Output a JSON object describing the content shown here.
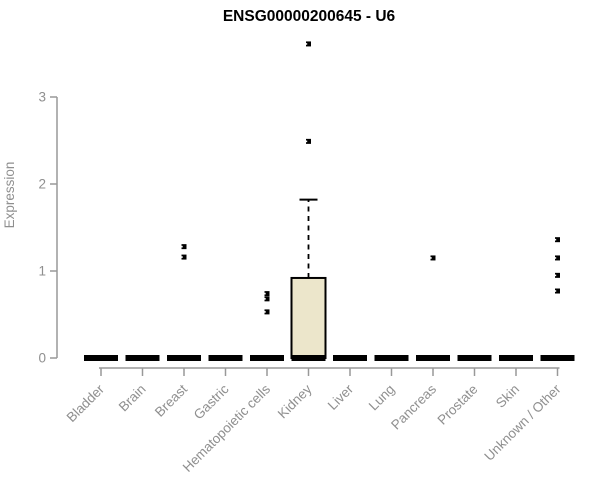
{
  "style": {
    "axis_color": "#999999",
    "label_color": "#8f8f8f",
    "title_color": "#000000",
    "data_color": "#000000",
    "box_fill": "#ece6cb",
    "background": "#ffffff"
  },
  "chart_data": {
    "type": "boxplot",
    "title": "ENSG00000200645 - U6",
    "xlabel": "",
    "ylabel": "Expression",
    "yticks": [
      0,
      1,
      2,
      3
    ],
    "ylim": [
      0,
      3.75
    ],
    "grid": "off",
    "legend": "none",
    "categories": [
      "Bladder",
      "Brain",
      "Breast",
      "Gastric",
      "Hematopoietic cells",
      "Kidney",
      "Liver",
      "Lung",
      "Pancreas",
      "Prostate",
      "Skin",
      "Unknown / Other"
    ],
    "boxes": [
      {
        "category": "Bladder",
        "median": 0,
        "q1": 0,
        "q3": 0,
        "whisker_low": 0,
        "whisker_high": 0,
        "outliers": []
      },
      {
        "category": "Brain",
        "median": 0,
        "q1": 0,
        "q3": 0,
        "whisker_low": 0,
        "whisker_high": 0,
        "outliers": []
      },
      {
        "category": "Breast",
        "median": 0,
        "q1": 0,
        "q3": 0,
        "whisker_low": 0,
        "whisker_high": 0,
        "outliers": [
          1.28,
          1.16
        ]
      },
      {
        "category": "Gastric",
        "median": 0,
        "q1": 0,
        "q3": 0,
        "whisker_low": 0,
        "whisker_high": 0,
        "outliers": []
      },
      {
        "category": "Hematopoietic cells",
        "median": 0,
        "q1": 0,
        "q3": 0,
        "whisker_low": 0,
        "whisker_high": 0,
        "outliers": [
          0.74,
          0.68,
          0.53
        ]
      },
      {
        "category": "Kidney",
        "median": 0,
        "q1": 0,
        "q3": 0.92,
        "whisker_low": 0,
        "whisker_high": 1.82,
        "outliers": [
          2.49,
          3.61
        ]
      },
      {
        "category": "Liver",
        "median": 0,
        "q1": 0,
        "q3": 0,
        "whisker_low": 0,
        "whisker_high": 0,
        "outliers": []
      },
      {
        "category": "Lung",
        "median": 0,
        "q1": 0,
        "q3": 0,
        "whisker_low": 0,
        "whisker_high": 0,
        "outliers": []
      },
      {
        "category": "Pancreas",
        "median": 0,
        "q1": 0,
        "q3": 0,
        "whisker_low": 0,
        "whisker_high": 0,
        "outliers": [
          1.15
        ]
      },
      {
        "category": "Prostate",
        "median": 0,
        "q1": 0,
        "q3": 0,
        "whisker_low": 0,
        "whisker_high": 0,
        "outliers": []
      },
      {
        "category": "Skin",
        "median": 0,
        "q1": 0,
        "q3": 0,
        "whisker_low": 0,
        "whisker_high": 0,
        "outliers": []
      },
      {
        "category": "Unknown / Other",
        "median": 0,
        "q1": 0,
        "q3": 0,
        "whisker_low": 0,
        "whisker_high": 0,
        "outliers": [
          1.36,
          1.15,
          0.95,
          0.77
        ]
      }
    ]
  }
}
